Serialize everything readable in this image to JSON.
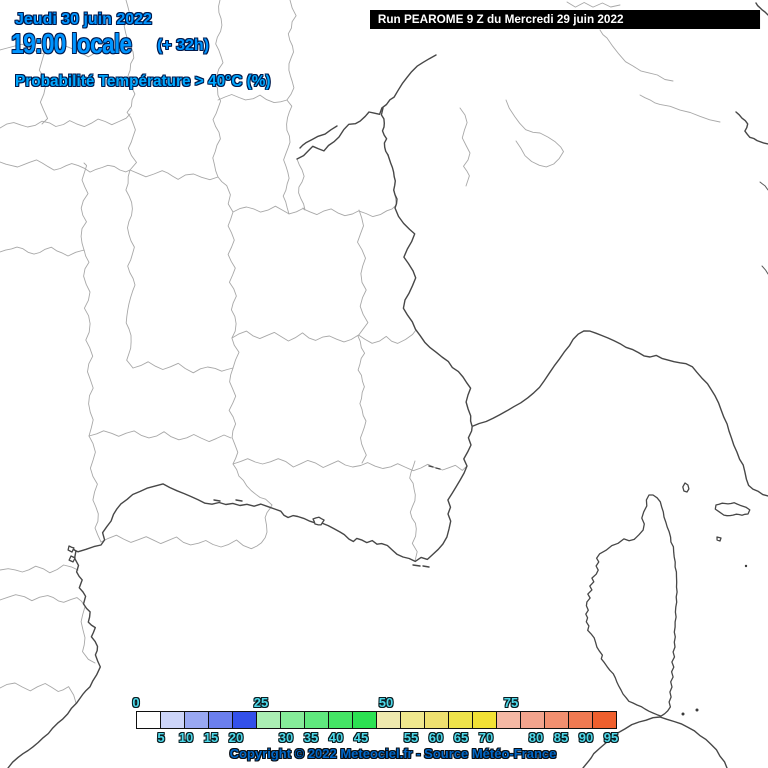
{
  "header": {
    "date": "Jeudi 30 juin 2022",
    "time": "19:00 locale",
    "offset": "(+ 32h)",
    "variable": "Probabilité Température > 40°C (%)"
  },
  "run_banner": {
    "text": "Run PEAROME 9 Z du Mercredi 29 juin 2022",
    "background": "#000000",
    "foreground": "#ffffff"
  },
  "footer": {
    "copyright": "Copyright © 2022 Meteociel.fr - Source Météo-France"
  },
  "colors": {
    "header_blue": "#0095ff",
    "variable_cyan": "#00a9ff",
    "legend_label_cyan": "#4dd9ea",
    "copyright_blue": "#0067c8",
    "coastline_gray": "#474747",
    "department_gray": "#a8a8a8",
    "map_fill": "#ffffff"
  },
  "chart_data": {
    "type": "heatmap",
    "title": "Probabilité Température > 40°C (%)",
    "subtitle": "Jeudi 30 juin 2022 19:00 locale (+ 32h)",
    "model_run": "Run PEAROME 9 Z du Mercredi 29 juin 2022",
    "unit": "%",
    "region": "Sud-Est France / Corse / mer Méditerranée",
    "observed_shading": "none - entire map unshaded (below first 0-5% bin)",
    "legend": {
      "min": 0,
      "max": 100,
      "bin_width": 5,
      "top_labels": [
        0,
        25,
        50,
        75
      ],
      "bottom_labels": [
        5,
        10,
        15,
        20,
        30,
        35,
        40,
        45,
        55,
        60,
        65,
        70,
        80,
        85,
        90,
        95
      ],
      "cell_values": [
        0,
        5,
        10,
        15,
        20,
        25,
        30,
        35,
        40,
        45,
        50,
        55,
        60,
        65,
        70,
        75,
        80,
        85,
        90,
        95
      ],
      "cell_colors": [
        "#ffffff",
        "#ccd4f8",
        "#99a8f2",
        "#6b7fee",
        "#3350ea",
        "#abefb4",
        "#86ec99",
        "#60e97e",
        "#45e465",
        "#2be152",
        "#efe9ae",
        "#f0e88e",
        "#efe170",
        "#efe34b",
        "#f2e135",
        "#f4b8a4",
        "#f2a48d",
        "#f29070",
        "#f07a52",
        "#ef5f2d"
      ]
    }
  }
}
